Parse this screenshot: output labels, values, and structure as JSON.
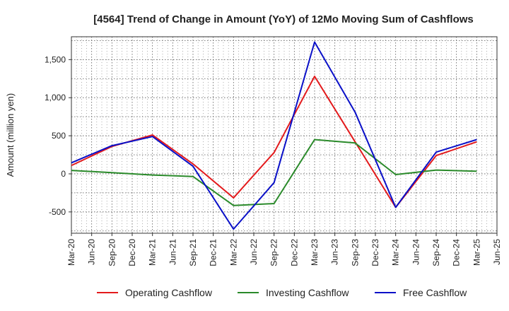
{
  "chart_data": {
    "type": "line",
    "title": "[4564]  Trend of Change in Amount (YoY) of 12Mo Moving Sum of Cashflows",
    "xlabel": "",
    "ylabel": "Amount (million yen)",
    "ylim": [
      -780,
      1800
    ],
    "yticks": [
      -500,
      0,
      500,
      1000,
      1500
    ],
    "ytick_labels": [
      "-500",
      "0",
      "500",
      "1,000",
      "1,500"
    ],
    "grid": true,
    "legend_position": "bottom",
    "categories": [
      "Mar-20",
      "Jun-20",
      "Sep-20",
      "Dec-20",
      "Mar-21",
      "Jun-21",
      "Sep-21",
      "Dec-21",
      "Mar-22",
      "Jun-22",
      "Sep-22",
      "Dec-22",
      "Mar-23",
      "Jun-23",
      "Sep-23",
      "Dec-23",
      "Mar-24",
      "Jun-24",
      "Sep-24",
      "Dec-24",
      "Mar-25",
      "Jun-25"
    ],
    "series": [
      {
        "name": "Operating Cashflow",
        "color": "#e31a1c",
        "points": [
          {
            "x": "Mar-20",
            "y": 110
          },
          {
            "x": "Sep-20",
            "y": 360
          },
          {
            "x": "Mar-21",
            "y": 510
          },
          {
            "x": "Sep-21",
            "y": 130
          },
          {
            "x": "Mar-22",
            "y": -315
          },
          {
            "x": "Sep-22",
            "y": 280
          },
          {
            "x": "Mar-23",
            "y": 1280
          },
          {
            "x": "Sep-23",
            "y": 420
          },
          {
            "x": "Mar-24",
            "y": -440
          },
          {
            "x": "Sep-24",
            "y": 240
          },
          {
            "x": "Mar-25",
            "y": 420
          }
        ]
      },
      {
        "name": "Investing Cashflow",
        "color": "#2a8a2a",
        "points": [
          {
            "x": "Mar-20",
            "y": 45
          },
          {
            "x": "Sep-20",
            "y": 15
          },
          {
            "x": "Mar-21",
            "y": -15
          },
          {
            "x": "Sep-21",
            "y": -35
          },
          {
            "x": "Mar-22",
            "y": -415
          },
          {
            "x": "Sep-22",
            "y": -390
          },
          {
            "x": "Mar-23",
            "y": 450
          },
          {
            "x": "Sep-23",
            "y": 405
          },
          {
            "x": "Mar-24",
            "y": -10
          },
          {
            "x": "Sep-24",
            "y": 50
          },
          {
            "x": "Mar-25",
            "y": 35
          }
        ]
      },
      {
        "name": "Free Cashflow",
        "color": "#0a10c8",
        "points": [
          {
            "x": "Mar-20",
            "y": 145
          },
          {
            "x": "Sep-20",
            "y": 370
          },
          {
            "x": "Mar-21",
            "y": 490
          },
          {
            "x": "Sep-21",
            "y": 100
          },
          {
            "x": "Mar-22",
            "y": -725
          },
          {
            "x": "Sep-22",
            "y": -115
          },
          {
            "x": "Mar-23",
            "y": 1730
          },
          {
            "x": "Sep-23",
            "y": 810
          },
          {
            "x": "Mar-24",
            "y": -440
          },
          {
            "x": "Sep-24",
            "y": 285
          },
          {
            "x": "Mar-25",
            "y": 450
          }
        ]
      }
    ]
  }
}
